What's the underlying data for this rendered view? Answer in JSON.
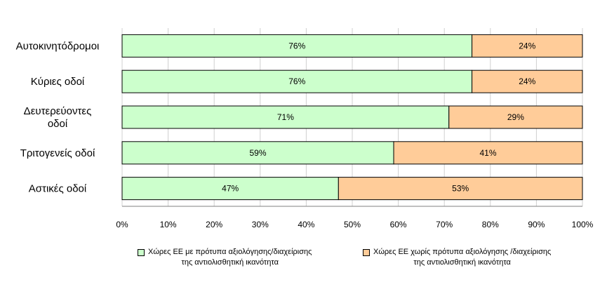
{
  "chart_data": {
    "type": "bar",
    "orientation": "horizontal",
    "stacked": true,
    "categories": [
      [
        "Αυτοκινητόδρομοι"
      ],
      [
        "Κύριες οδοί"
      ],
      [
        "Δευτερεύοντες",
        "οδοί"
      ],
      [
        "Τριτογενείς οδοί"
      ],
      [
        "Αστικές οδοί"
      ]
    ],
    "series": [
      {
        "name_lines": [
          "Χώρες ΕΕ με πρότυπα αξιολόγησης/διαχείρισης",
          "της αντιολισθητική ικανότητα"
        ],
        "color": "#ccffcc",
        "values": [
          76,
          76,
          71,
          59,
          47
        ],
        "labels": [
          "76%",
          "76%",
          "71%",
          "59%",
          "47%"
        ]
      },
      {
        "name_lines": [
          "Χώρες ΕΕ χωρίς πρότυπα αξιολόγησης /διαχείρισης",
          "της αντιολισθητική ικανότητα"
        ],
        "color": "#ffcc99",
        "values": [
          24,
          24,
          29,
          41,
          53
        ],
        "labels": [
          "24%",
          "24%",
          "29%",
          "41%",
          "53%"
        ]
      }
    ],
    "xlim": [
      0,
      100
    ],
    "xticks": [
      "0%",
      "10%",
      "20%",
      "30%",
      "40%",
      "50%",
      "60%",
      "70%",
      "80%",
      "90%",
      "100%"
    ],
    "grid": "vertical",
    "legend_position": "bottom"
  }
}
